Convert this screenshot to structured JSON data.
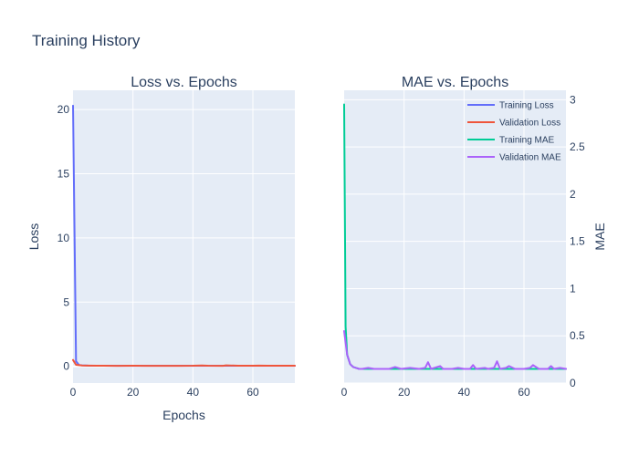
{
  "title": "Training History",
  "colors": {
    "plot_bg": "#e5ecf6",
    "grid": "#ffffff",
    "text": "#2a3f5f",
    "training_loss": "#636efa",
    "validation_loss": "#ef553b",
    "training_mae": "#00cc96",
    "validation_mae": "#ab63fa"
  },
  "legend": {
    "placement": "top-right",
    "items": [
      {
        "label": "Training Loss",
        "color_key": "training_loss"
      },
      {
        "label": "Validation Loss",
        "color_key": "validation_loss"
      },
      {
        "label": "Training MAE",
        "color_key": "training_mae"
      },
      {
        "label": "Validation MAE",
        "color_key": "validation_mae"
      }
    ]
  },
  "chart_data": [
    {
      "type": "line",
      "title": "Loss vs. Epochs",
      "xlabel": "Epochs",
      "ylabel": "Loss",
      "xlim": [
        0,
        74
      ],
      "ylim": [
        -1.3,
        21.5
      ],
      "xticks": [
        0,
        20,
        40,
        60
      ],
      "yticks": [
        0,
        5,
        10,
        15,
        20
      ],
      "series": [
        {
          "name": "Training Loss",
          "color_key": "training_loss",
          "x": [
            0,
            1,
            2,
            3,
            4,
            5,
            6,
            8,
            10,
            15,
            20,
            25,
            30,
            35,
            40,
            45,
            50,
            55,
            60,
            65,
            70,
            74
          ],
          "y": [
            20.3,
            0.4,
            0.1,
            0.08,
            0.07,
            0.06,
            0.05,
            0.05,
            0.05,
            0.04,
            0.04,
            0.04,
            0.04,
            0.04,
            0.04,
            0.04,
            0.04,
            0.04,
            0.04,
            0.04,
            0.04,
            0.04
          ]
        },
        {
          "name": "Validation Loss",
          "color_key": "validation_loss",
          "x": [
            0,
            1,
            2,
            3,
            5,
            8,
            10,
            15,
            20,
            25,
            30,
            35,
            40,
            43,
            45,
            50,
            51,
            55,
            60,
            62,
            65,
            70,
            74
          ],
          "y": [
            0.5,
            0.12,
            0.09,
            0.07,
            0.06,
            0.05,
            0.05,
            0.04,
            0.05,
            0.04,
            0.04,
            0.04,
            0.05,
            0.07,
            0.05,
            0.04,
            0.08,
            0.05,
            0.05,
            0.06,
            0.05,
            0.05,
            0.05
          ]
        }
      ]
    },
    {
      "type": "line",
      "title": "MAE vs. Epochs",
      "ylabel": "MAE",
      "xlim": [
        0,
        74
      ],
      "ylim": [
        0,
        3.1
      ],
      "xticks": [
        0,
        20,
        40,
        60
      ],
      "yticks": [
        0,
        0.5,
        1,
        1.5,
        2,
        2.5,
        3
      ],
      "y_axis_side": "right",
      "series": [
        {
          "name": "Training MAE",
          "color_key": "training_mae",
          "x": [
            0,
            0.5,
            1,
            2,
            3,
            4,
            5,
            6,
            8,
            10,
            15,
            20,
            25,
            30,
            35,
            40,
            45,
            50,
            55,
            60,
            65,
            70,
            74
          ],
          "y": [
            2.95,
            0.6,
            0.3,
            0.2,
            0.17,
            0.16,
            0.15,
            0.15,
            0.15,
            0.15,
            0.15,
            0.15,
            0.15,
            0.15,
            0.15,
            0.15,
            0.15,
            0.15,
            0.15,
            0.15,
            0.15,
            0.15,
            0.15
          ]
        },
        {
          "name": "Validation MAE",
          "color_key": "validation_mae",
          "x": [
            0,
            1,
            2,
            3,
            4,
            5,
            6,
            8,
            10,
            13,
            15,
            17,
            19,
            22,
            25,
            27,
            28,
            29,
            32,
            33,
            36,
            38,
            40,
            42,
            43,
            44,
            47,
            48,
            50,
            51,
            52,
            54,
            55,
            57,
            60,
            62,
            63,
            65,
            68,
            69,
            70,
            72,
            74
          ],
          "y": [
            0.55,
            0.3,
            0.2,
            0.17,
            0.16,
            0.15,
            0.15,
            0.16,
            0.15,
            0.15,
            0.15,
            0.17,
            0.15,
            0.16,
            0.15,
            0.16,
            0.22,
            0.15,
            0.18,
            0.15,
            0.15,
            0.16,
            0.15,
            0.15,
            0.19,
            0.15,
            0.16,
            0.15,
            0.16,
            0.23,
            0.15,
            0.16,
            0.18,
            0.15,
            0.15,
            0.16,
            0.19,
            0.15,
            0.15,
            0.18,
            0.15,
            0.16,
            0.15
          ]
        }
      ]
    }
  ]
}
